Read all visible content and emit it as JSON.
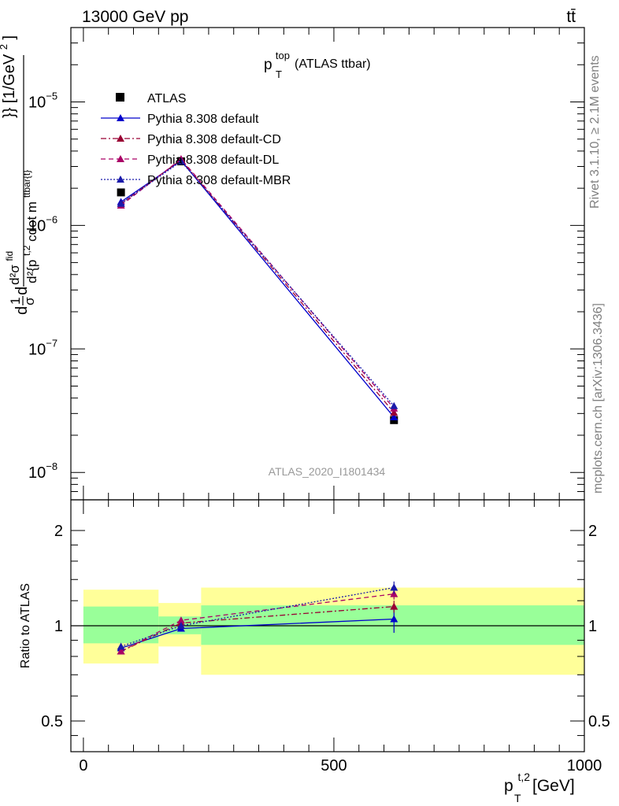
{
  "header": {
    "energy_label": "13000 GeV pp",
    "process_label": "tt̄"
  },
  "side_labels": {
    "rivet": "Rivet 3.1.10, ≥ 2.1M events",
    "source": "mcplots.cern.ch [arXiv:1306.3436]"
  },
  "chart_data": [
    {
      "type": "line",
      "role": "main",
      "title_main": "p",
      "title_sup": "top",
      "title_sub": "T",
      "title_rest": " (ATLAS ttbar)",
      "ylabel": "d²{p_T^{t,2} cdot m^{ttbar{t}}} [1/GeV²]",
      "ylabel_parts": {
        "prefix": "d",
        "frac_num": "1",
        "frac_den": "σ",
        "d": "d",
        "dsigma": "d²σ",
        "dsigma_sup": "fid",
        "denom": "d²{p",
        "denom_sup": "t,2",
        "denom_sub": "T",
        "denom_rest": " cdot m",
        "denom_rest_sup": "ttbar{t}",
        "tail": "}} [1/GeV",
        "tail_sup": "2",
        "tail_end": "]"
      },
      "yscale": "log",
      "ylim": [
        6e-09,
        4e-05
      ],
      "xlim": [
        -25,
        1000
      ],
      "y_ticks": [
        {
          "value": 1e-08,
          "base": "10",
          "exp": "−8"
        },
        {
          "value": 1e-07,
          "base": "10",
          "exp": "−7"
        },
        {
          "value": 1e-06,
          "base": "10",
          "exp": "−6"
        },
        {
          "value": 1e-05,
          "base": "10",
          "exp": "−5"
        }
      ],
      "watermark": "ATLAS_2020_I1801434",
      "series": [
        {
          "name": "ATLAS",
          "style": "data",
          "color": "#000000",
          "x": [
            75,
            195,
            620
          ],
          "y": [
            1.85e-06,
            3.3e-06,
            2.65e-08
          ]
        },
        {
          "name": "Pythia 8.308 default",
          "style": "solid",
          "color": "#0000cc",
          "x": [
            75,
            195,
            620
          ],
          "y": [
            1.55e-06,
            3.35e-06,
            2.8e-08
          ]
        },
        {
          "name": "Pythia 8.308 default-CD",
          "style": "dashdot",
          "color": "#990033",
          "x": [
            75,
            195,
            620
          ],
          "y": [
            1.5e-06,
            3.4e-06,
            3.05e-08
          ]
        },
        {
          "name": "Pythia 8.308 default-DL",
          "style": "dashed",
          "color": "#aa0066",
          "x": [
            75,
            195,
            620
          ],
          "y": [
            1.45e-06,
            3.45e-06,
            3.3e-08
          ]
        },
        {
          "name": "Pythia 8.308 default-MBR",
          "style": "dotted",
          "color": "#1a1aaa",
          "x": [
            75,
            195,
            620
          ],
          "y": [
            1.5e-06,
            3.3e-06,
            3.45e-08
          ]
        }
      ]
    },
    {
      "type": "line",
      "role": "ratio",
      "ylabel": "Ratio to ATLAS",
      "yscale": "log",
      "ylim": [
        0.4,
        2.5
      ],
      "xlim": [
        -25,
        1000
      ],
      "y_ticks": [
        0.5,
        1,
        2
      ],
      "y_tick_labels": [
        "0.5",
        "1",
        "2"
      ],
      "x_ticks": [
        0,
        500,
        1000
      ],
      "x_tick_labels": [
        "0",
        "500",
        "1000"
      ],
      "xlabel": {
        "main": "p",
        "sup": "t,2",
        "sub": "T",
        "rest": " [GeV]"
      },
      "bands": [
        {
          "x0": 0,
          "x1": 150,
          "stat_lo": 0.88,
          "stat_hi": 1.15,
          "tot_lo": 0.76,
          "tot_hi": 1.3
        },
        {
          "x0": 150,
          "x1": 235,
          "stat_lo": 0.94,
          "stat_hi": 1.07,
          "tot_lo": 0.86,
          "tot_hi": 1.18
        },
        {
          "x0": 235,
          "x1": 1000,
          "stat_lo": 0.87,
          "stat_hi": 1.16,
          "tot_lo": 0.7,
          "tot_hi": 1.32
        }
      ],
      "series": [
        {
          "name": "Pythia 8.308 default",
          "style": "solid",
          "color": "#0000cc",
          "x": [
            75,
            195,
            620
          ],
          "y": [
            0.85,
            0.98,
            1.05
          ],
          "err": [
            0.015,
            0.015,
            0.1
          ]
        },
        {
          "name": "Pythia 8.308 default-CD",
          "style": "dashdot",
          "color": "#990033",
          "x": [
            75,
            195,
            620
          ],
          "y": [
            0.83,
            1.02,
            1.15
          ],
          "err": [
            0.015,
            0.015,
            0.05
          ]
        },
        {
          "name": "Pythia 8.308 default-DL",
          "style": "dashed",
          "color": "#aa0066",
          "x": [
            75,
            195,
            620
          ],
          "y": [
            0.83,
            1.04,
            1.26
          ],
          "err": [
            0.015,
            0.015,
            0.05
          ]
        },
        {
          "name": "Pythia 8.308 default-MBR",
          "style": "dotted",
          "color": "#1a1aaa",
          "x": [
            75,
            195,
            620
          ],
          "y": [
            0.86,
            1.0,
            1.32
          ],
          "err": [
            0.015,
            0.015,
            0.06
          ]
        }
      ]
    }
  ]
}
